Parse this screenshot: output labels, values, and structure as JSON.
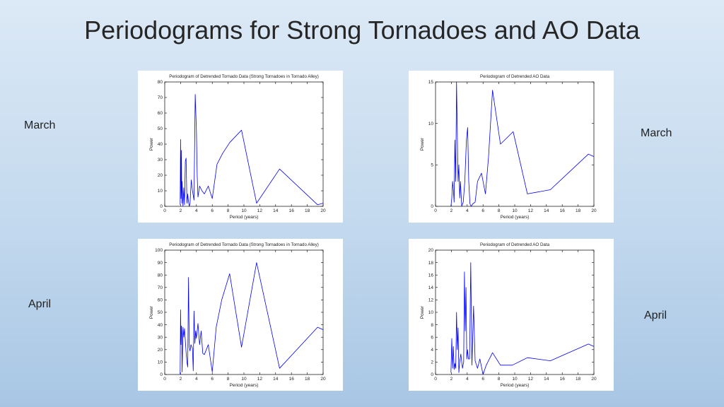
{
  "slide": {
    "title": "Periodograms for Strong Tornadoes and AO Data",
    "labels": {
      "march_left": "March",
      "march_right": "March",
      "april_left": "April",
      "april_right": "April"
    }
  },
  "chart_data": [
    {
      "type": "line",
      "title": "Periodogram of Detrended Tornado Data (Strong Tornadoes in Tornado Alley)",
      "xlabel": "Period (years)",
      "ylabel": "Power",
      "xlim": [
        0,
        20
      ],
      "ylim": [
        0,
        80
      ],
      "xticks": [
        0,
        2,
        4,
        6,
        8,
        10,
        12,
        14,
        16,
        18,
        20
      ],
      "yticks": [
        0,
        10,
        20,
        30,
        40,
        50,
        60,
        70,
        80
      ],
      "color": "#0000ff",
      "x": [
        1.95,
        2.0,
        2.05,
        2.1,
        2.15,
        2.2,
        2.3,
        2.4,
        2.5,
        2.6,
        2.7,
        2.8,
        2.9,
        3.0,
        3.1,
        3.2,
        3.35,
        3.5,
        3.7,
        3.85,
        4.0,
        4.1,
        4.2,
        4.4,
        4.7,
        5.0,
        5.5,
        6.0,
        6.6,
        7.3,
        8.2,
        9.7,
        11.6,
        14.5,
        19.3,
        20
      ],
      "y": [
        1,
        43,
        5,
        36,
        2,
        16,
        0,
        12,
        1,
        29,
        31,
        2,
        8,
        3,
        0,
        2,
        17,
        10,
        4,
        72,
        49,
        20,
        6,
        13,
        10,
        8,
        13,
        5,
        27,
        34,
        41,
        49,
        2,
        24,
        1,
        2
      ]
    },
    {
      "type": "line",
      "title": "Periodogram of Detrended AO Data",
      "xlabel": "Period (years)",
      "ylabel": "Power",
      "xlim": [
        0,
        20
      ],
      "ylim": [
        0,
        15
      ],
      "xticks": [
        0,
        2,
        4,
        6,
        8,
        10,
        12,
        14,
        16,
        18,
        20
      ],
      "yticks": [
        0,
        5,
        10,
        15
      ],
      "color": "#0000ff",
      "x": [
        1.95,
        2.05,
        2.15,
        2.25,
        2.35,
        2.45,
        2.55,
        2.65,
        2.75,
        2.85,
        2.95,
        3.05,
        3.15,
        3.3,
        3.5,
        3.7,
        3.9,
        4.05,
        4.2,
        4.35,
        4.5,
        4.7,
        5.0,
        5.3,
        5.8,
        6.3,
        6.7,
        7.2,
        8.2,
        9.8,
        11.6,
        14.5,
        19.3,
        20
      ],
      "y": [
        0,
        1,
        3,
        2,
        0.5,
        8,
        3,
        15,
        9,
        3,
        5,
        1,
        3,
        0,
        0.5,
        3,
        8,
        9.5,
        3,
        0.3,
        0,
        0.3,
        0.5,
        3,
        4,
        1.5,
        6,
        14,
        7.5,
        9,
        1.5,
        2,
        6.3,
        6
      ]
    },
    {
      "type": "line",
      "title": "Periodogram of Detrended Tornado Data (Strong Tornadoes in Tornado Alley)",
      "xlabel": "Period (years)",
      "ylabel": "Power",
      "xlim": [
        0,
        20
      ],
      "ylim": [
        0,
        100
      ],
      "xticks": [
        0,
        2,
        4,
        6,
        8,
        10,
        12,
        14,
        16,
        18,
        20
      ],
      "yticks": [
        0,
        10,
        20,
        30,
        40,
        50,
        60,
        70,
        80,
        90,
        100
      ],
      "color": "#0000ff",
      "x": [
        1.95,
        2.0,
        2.05,
        2.1,
        2.15,
        2.2,
        2.3,
        2.4,
        2.5,
        2.7,
        2.8,
        2.9,
        3.0,
        3.1,
        3.2,
        3.3,
        3.5,
        3.6,
        3.7,
        3.8,
        3.9,
        4.0,
        4.2,
        4.4,
        4.6,
        4.8,
        5.0,
        5.5,
        6.0,
        6.5,
        7.2,
        8.2,
        9.7,
        11.6,
        14.5,
        19.3,
        20
      ],
      "y": [
        0,
        52,
        24,
        39,
        33,
        2,
        38,
        30,
        37,
        18,
        10,
        6,
        78,
        22,
        19,
        24,
        21,
        3,
        51,
        25,
        35,
        29,
        41,
        24,
        35,
        17,
        16,
        24,
        2,
        38,
        60,
        81,
        22,
        90,
        5,
        38,
        36
      ]
    },
    {
      "type": "line",
      "title": "Periodogram of Detrended AO Data",
      "xlabel": "Period (years)",
      "ylabel": "Power",
      "xlim": [
        0,
        20
      ],
      "ylim": [
        0,
        20
      ],
      "xticks": [
        0,
        2,
        4,
        6,
        8,
        10,
        12,
        14,
        16,
        18,
        20
      ],
      "yticks": [
        0,
        2,
        4,
        6,
        8,
        10,
        12,
        14,
        16,
        18,
        20
      ],
      "color": "#0000ff",
      "x": [
        1.95,
        2.05,
        2.15,
        2.25,
        2.35,
        2.45,
        2.55,
        2.65,
        2.75,
        2.85,
        2.95,
        3.05,
        3.2,
        3.4,
        3.55,
        3.65,
        3.75,
        3.85,
        3.95,
        4.05,
        4.15,
        4.3,
        4.45,
        4.6,
        4.8,
        5.0,
        5.3,
        5.6,
        6.0,
        6.4,
        7.2,
        8.2,
        9.7,
        11.6,
        14.5,
        19.3,
        20
      ],
      "y": [
        0.3,
        5.8,
        1,
        4.5,
        0.8,
        1.8,
        1,
        10,
        4,
        7.5,
        0.3,
        2,
        3.3,
        1,
        2,
        16.5,
        7,
        14,
        2.5,
        4,
        2.5,
        2.5,
        18,
        1.5,
        11,
        2.2,
        1,
        2.5,
        0,
        1.5,
        3.5,
        1.5,
        1.5,
        2.7,
        2.2,
        4.9,
        4.5
      ]
    }
  ]
}
